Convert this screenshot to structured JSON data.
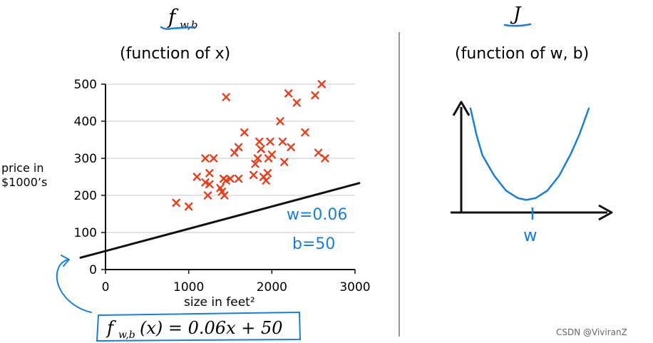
{
  "colors": {
    "accent": "#1a7fd4",
    "point": "#e5401f",
    "line": "#111111",
    "grid": "#c8c8c8",
    "divider": "#9a9a9a"
  },
  "left_panel": {
    "header_f": "f",
    "header_sub": "w,b",
    "subtitle": "(function of x)"
  },
  "right_panel": {
    "header": "J",
    "subtitle": "(function of w, b)",
    "axis_label": "w"
  },
  "annotations": {
    "w_value": "w=0.06",
    "b_value": "b=50",
    "formula_f": "f",
    "formula_sub": "w,b",
    "formula_rest": "(x) = 0.06x + 50"
  },
  "watermark": "CSDN @ViviranZ",
  "chart_data": [
    {
      "type": "scatter",
      "title": "(function of x)",
      "xlabel": "size in feet²",
      "ylabel": "price in $1000’s",
      "xlim": [
        0,
        3000
      ],
      "ylim": [
        0,
        500
      ],
      "xticks": [
        "0",
        "1000",
        "2000",
        "3000"
      ],
      "yticks": [
        "0",
        "100",
        "200",
        "300",
        "400",
        "500"
      ],
      "grid": true,
      "points": [
        [
          850,
          180
        ],
        [
          1000,
          170
        ],
        [
          1100,
          250
        ],
        [
          1200,
          235
        ],
        [
          1200,
          300
        ],
        [
          1230,
          200
        ],
        [
          1250,
          260
        ],
        [
          1250,
          230
        ],
        [
          1300,
          300
        ],
        [
          1380,
          220
        ],
        [
          1400,
          210
        ],
        [
          1420,
          245
        ],
        [
          1430,
          200
        ],
        [
          1450,
          240
        ],
        [
          1450,
          465
        ],
        [
          1500,
          245
        ],
        [
          1550,
          315
        ],
        [
          1600,
          330
        ],
        [
          1600,
          245
        ],
        [
          1670,
          370
        ],
        [
          1780,
          255
        ],
        [
          1800,
          285
        ],
        [
          1830,
          300
        ],
        [
          1850,
          345
        ],
        [
          1870,
          325
        ],
        [
          1900,
          250
        ],
        [
          1930,
          240
        ],
        [
          1950,
          260
        ],
        [
          1960,
          300
        ],
        [
          1980,
          345
        ],
        [
          2000,
          310
        ],
        [
          2100,
          400
        ],
        [
          2130,
          345
        ],
        [
          2150,
          290
        ],
        [
          2200,
          475
        ],
        [
          2230,
          330
        ],
        [
          2300,
          450
        ],
        [
          2400,
          370
        ],
        [
          2520,
          470
        ],
        [
          2560,
          315
        ],
        [
          2600,
          500
        ],
        [
          2640,
          300
        ]
      ],
      "series": [
        {
          "name": "f_w,b(x) = 0.06x + 50",
          "type": "line",
          "w": 0.06,
          "b": 50,
          "x_range": [
            -300,
            3050
          ]
        }
      ]
    },
    {
      "type": "line",
      "title": "(function of w, b)",
      "xlabel": "w",
      "ylabel": "J",
      "series": [
        {
          "name": "J(w)",
          "x": [
            0.0,
            0.05,
            0.1,
            0.2,
            0.3,
            0.4,
            0.47,
            0.55,
            0.65,
            0.75,
            0.85,
            0.92,
            1.0
          ],
          "y": [
            1.0,
            0.72,
            0.5,
            0.28,
            0.12,
            0.04,
            0.02,
            0.04,
            0.12,
            0.28,
            0.52,
            0.72,
            1.0
          ]
        }
      ]
    }
  ]
}
